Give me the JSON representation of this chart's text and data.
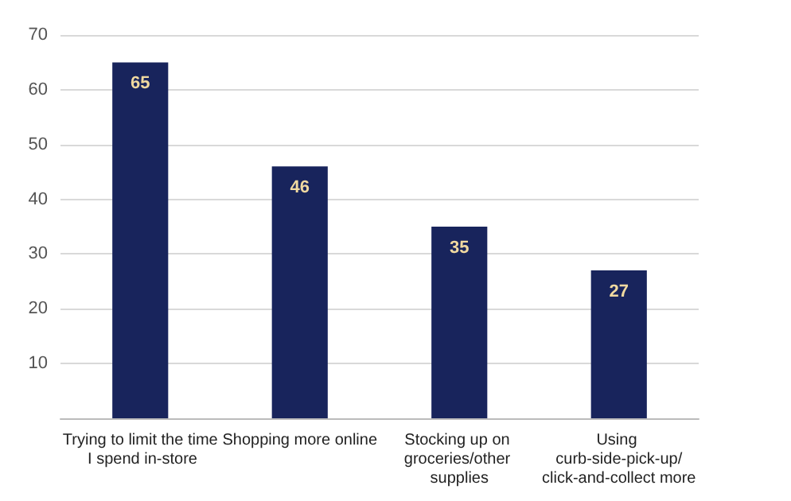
{
  "chart_data": {
    "type": "bar",
    "categories": [
      "Trying to limit the time I spend in-store",
      "Shopping more online",
      "Stocking up on groceries/other supplies",
      "Using curb-side-pick-up/click-and-collect more"
    ],
    "values": [
      65,
      46,
      35,
      27
    ],
    "color": "#18245c",
    "ylim": [
      0,
      70
    ],
    "yticks": [
      {
        "value": 0,
        "label": null
      },
      10,
      20,
      30,
      40,
      50,
      60,
      70
    ],
    "grid": "y",
    "data_labels": true
  }
}
